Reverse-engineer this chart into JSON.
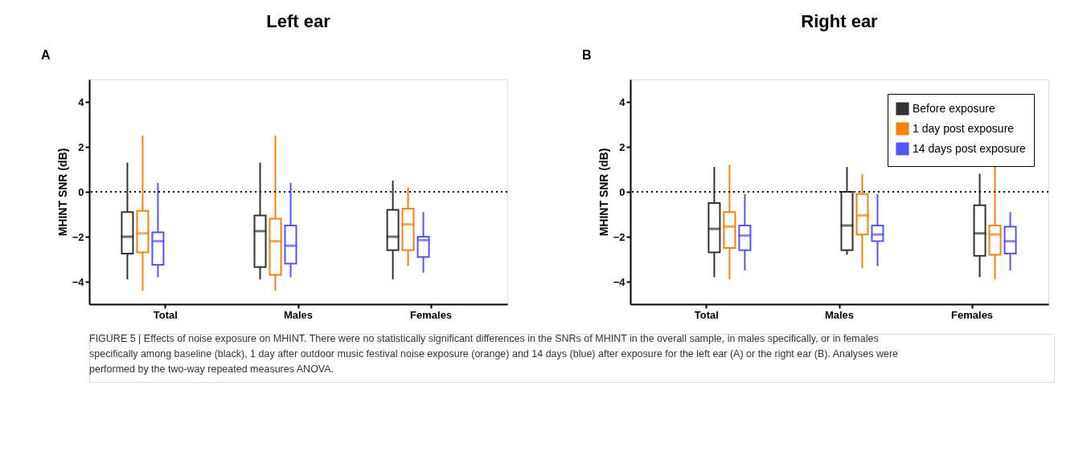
{
  "chart_data": [
    {
      "type": "box",
      "title": "Left ear",
      "annotations": [
        "A"
      ],
      "ylabel": "MHINT SNR (dB)",
      "categories": [
        "Total",
        "Males",
        "Females"
      ],
      "ylim": [
        -5,
        5
      ],
      "yticks": [
        -4,
        -2,
        0,
        2,
        4
      ],
      "grid": false,
      "legend": false,
      "ref_lines": [
        {
          "axis": "y",
          "value": 0,
          "line_style": "dotted",
          "color": "#000000"
        }
      ],
      "series": [
        {
          "color": "#333333",
          "boxes": [
            {
              "low": -3.9,
              "q1": -2.75,
              "median": -2.0,
              "q3": -0.9,
              "high": 1.3
            },
            {
              "low": -3.9,
              "q1": -3.35,
              "median": -1.75,
              "q3": -1.05,
              "high": 1.3
            },
            {
              "low": -3.9,
              "q1": -2.6,
              "median": -2.0,
              "q3": -0.8,
              "high": 0.5
            }
          ]
        },
        {
          "color": "#f7820f",
          "boxes": [
            {
              "low": -4.4,
              "q1": -2.7,
              "median": -1.85,
              "q3": -0.85,
              "high": 2.5
            },
            {
              "low": -4.4,
              "q1": -3.7,
              "median": -2.2,
              "q3": -1.2,
              "high": 2.5
            },
            {
              "low": -3.3,
              "q1": -2.6,
              "median": -1.45,
              "q3": -0.75,
              "high": 0.2
            }
          ]
        },
        {
          "color": "#5555ff",
          "boxes": [
            {
              "low": -3.8,
              "q1": -3.25,
              "median": -2.2,
              "q3": -1.8,
              "high": 0.4
            },
            {
              "low": -3.8,
              "q1": -3.2,
              "median": -2.4,
              "q3": -1.5,
              "high": 0.4
            },
            {
              "low": -3.6,
              "q1": -2.9,
              "median": -2.15,
              "q3": -2.0,
              "high": -0.9
            }
          ]
        }
      ]
    },
    {
      "type": "box",
      "title": "Right ear",
      "annotations": [
        "B",
        "FIGURE 5 | Effects of noise exposure on MHINT. There were no statistically significant differences in the SNRs of MHINT in the overall sample, in males specifically, or in females specifically among baseline (black), 1 day after outdoor music festival noise exposure (orange) and 14 days (blue) after exposure for the left ear (A) or the right ear (B). Analyses were performed by the two-way repeated measures ANOVA."
      ],
      "ylabel": "MHINT SNR (dB)",
      "categories": [
        "Total",
        "Males",
        "Females"
      ],
      "ylim": [
        -5,
        5
      ],
      "yticks": [
        -4,
        -2,
        0,
        2,
        4
      ],
      "grid": false,
      "legend": "top right",
      "ref_lines": [
        {
          "axis": "y",
          "value": 0,
          "line_style": "dotted",
          "color": "#000000"
        }
      ],
      "series": [
        {
          "name": "Before exposure",
          "color": "#333333",
          "boxes": [
            {
              "low": -3.8,
              "q1": -2.7,
              "median": -1.65,
              "q3": -0.5,
              "high": 1.1
            },
            {
              "low": -2.8,
              "q1": -2.6,
              "median": -1.5,
              "q3": 0.0,
              "high": 1.1
            },
            {
              "low": -3.8,
              "q1": -2.85,
              "median": -1.85,
              "q3": -0.6,
              "high": 0.8
            }
          ]
        },
        {
          "name": "1 day post exposure",
          "color": "#f7820f",
          "boxes": [
            {
              "low": -3.9,
              "q1": -2.5,
              "median": -1.55,
              "q3": -0.9,
              "high": 1.2
            },
            {
              "low": -3.4,
              "q1": -1.9,
              "median": -1.05,
              "q3": -0.1,
              "high": 0.8
            },
            {
              "low": -3.9,
              "q1": -2.8,
              "median": -1.9,
              "q3": -1.5,
              "high": 1.2
            }
          ]
        },
        {
          "name": "14 days post exposure",
          "color": "#5555ff",
          "boxes": [
            {
              "low": -3.5,
              "q1": -2.6,
              "median": -1.95,
              "q3": -1.5,
              "high": -0.1
            },
            {
              "low": -3.3,
              "q1": -2.2,
              "median": -1.9,
              "q3": -1.5,
              "high": -0.1
            },
            {
              "low": -3.5,
              "q1": -2.75,
              "median": -2.2,
              "q3": -1.55,
              "high": -0.9
            }
          ]
        }
      ]
    }
  ]
}
